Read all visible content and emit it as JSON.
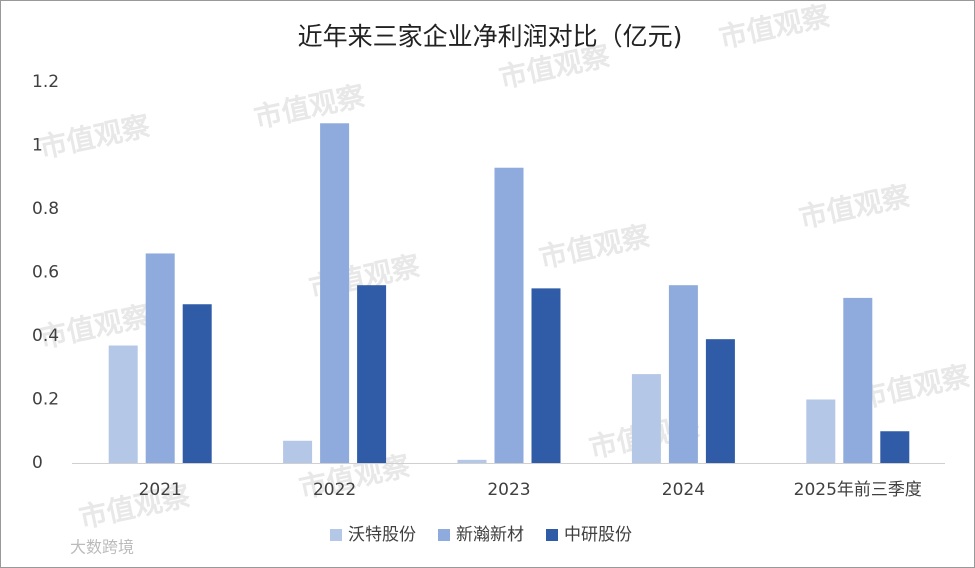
{
  "chart_data": {
    "type": "bar",
    "title": "近年来三家企业净利润对比（亿元)",
    "categories": [
      "2021",
      "2022",
      "2023",
      "2024",
      "2025年前三季度"
    ],
    "series": [
      {
        "name": "沃特股份",
        "color": "#b4c7e7",
        "values": [
          0.37,
          0.07,
          0.01,
          0.28,
          0.2
        ]
      },
      {
        "name": "新瀚新材",
        "color": "#8faadc",
        "values": [
          0.66,
          1.07,
          0.93,
          0.56,
          0.52
        ]
      },
      {
        "name": "中研股份",
        "color": "#2f5ba7",
        "values": [
          0.5,
          0.56,
          0.55,
          0.39,
          0.1
        ]
      }
    ],
    "ylim": [
      0,
      1.2
    ],
    "yticks": [
      0,
      0.2,
      0.4,
      0.6,
      0.8,
      1,
      1.2
    ],
    "grid": false,
    "legend": "bottom",
    "watermark": "市值观察",
    "source_mark": "大数跨境"
  }
}
